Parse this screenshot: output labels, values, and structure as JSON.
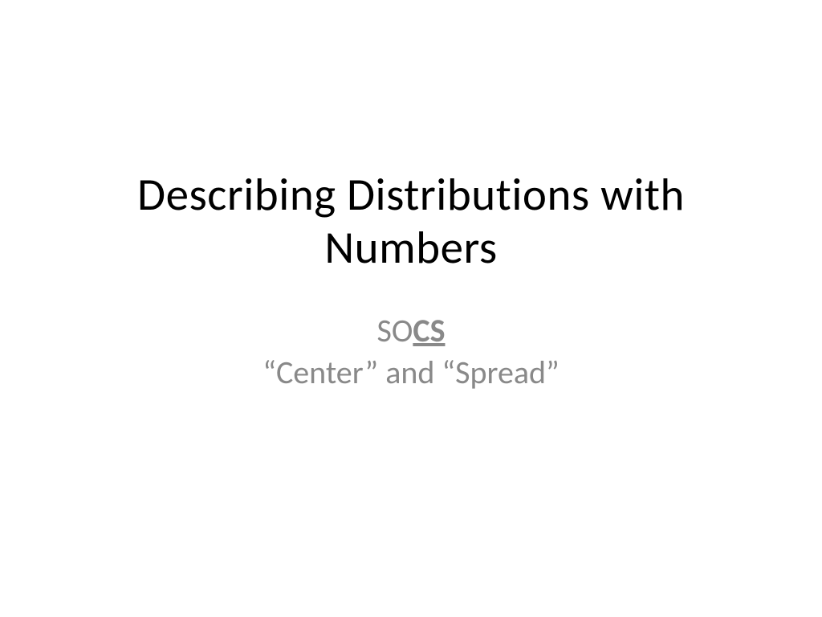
{
  "slide": {
    "title": "Describing Distributions with Numbers",
    "subtitle": {
      "line1": {
        "so": "SO",
        "cs": "CS"
      },
      "line2": "“Center” and “Spread”"
    },
    "style": {
      "background_color": "#ffffff",
      "title_color": "#000000",
      "title_fontsize": 57,
      "title_fontweight": 400,
      "subtitle_color": "#898989",
      "subtitle_fontsize": 40,
      "subtitle_cs_fontweight": 700,
      "subtitle_cs_underline": true,
      "font_family": "Calibri"
    }
  }
}
